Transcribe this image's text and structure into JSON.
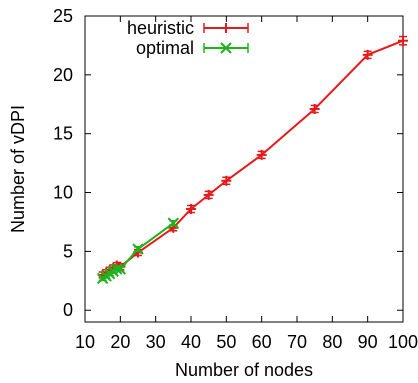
{
  "chart_data": {
    "type": "line",
    "title": "",
    "xlabel": "Number of nodes",
    "ylabel": "Number of vDPI",
    "xlim": [
      10,
      100
    ],
    "ylim": [
      -1,
      25
    ],
    "xticks": [
      10,
      20,
      30,
      40,
      50,
      60,
      70,
      80,
      90,
      100
    ],
    "yticks": [
      0,
      5,
      10,
      15,
      20,
      25
    ],
    "grid": false,
    "legend_position": "top-left",
    "series": [
      {
        "name": "heuristic",
        "color": "#e41a1c",
        "marker": "plus",
        "x": [
          15,
          16,
          17,
          18,
          19,
          20,
          25,
          35,
          40,
          45,
          50,
          60,
          75,
          90,
          100
        ],
        "y": [
          3.0,
          3.2,
          3.4,
          3.6,
          3.8,
          3.7,
          4.9,
          7.0,
          8.6,
          9.8,
          11.0,
          13.2,
          17.1,
          21.7,
          22.9
        ],
        "err": [
          0.25,
          0.25,
          0.25,
          0.25,
          0.25,
          0.25,
          0.25,
          0.25,
          0.3,
          0.3,
          0.3,
          0.3,
          0.3,
          0.3,
          0.35
        ]
      },
      {
        "name": "optimal",
        "color": "#1db31d",
        "marker": "x",
        "x": [
          15,
          16,
          17,
          18,
          19,
          20,
          25,
          35
        ],
        "y": [
          2.7,
          2.9,
          3.1,
          3.3,
          3.5,
          3.5,
          5.2,
          7.4
        ],
        "err": [
          0.15,
          0.15,
          0.15,
          0.15,
          0.15,
          0.15,
          0.2,
          0.2
        ]
      }
    ]
  }
}
